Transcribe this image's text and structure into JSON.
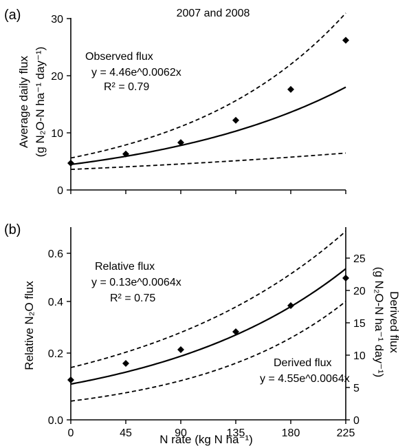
{
  "chart_data": [
    {
      "type": "scatter",
      "panel_label": "(a)",
      "title": "2007 and 2008",
      "ylabel_line1": "Average daily flux",
      "ylabel_line2": "(g N₂O-N ha⁻¹ day⁻¹)",
      "xlim": [
        0,
        225
      ],
      "ylim": [
        0,
        30
      ],
      "yticks": [
        "0",
        "10",
        "20",
        "30"
      ],
      "xticks": [
        0,
        45,
        90,
        135,
        180,
        225
      ],
      "x": [
        0,
        45,
        90,
        135,
        180,
        225
      ],
      "y": [
        4.7,
        6.3,
        8.3,
        12.2,
        17.6,
        26.2
      ],
      "fit": {
        "a": 4.46,
        "b": 0.0062
      },
      "upper_ci": {
        "a": 5.6,
        "b": 0.0076
      },
      "lower_ci": {
        "a": 3.6,
        "b": 0.0026
      },
      "annotation": {
        "name": "Observed flux",
        "equation": "y = 4.46e^0.0062x",
        "r2": "R² = 0.79"
      }
    },
    {
      "type": "scatter",
      "panel_label": "(b)",
      "ylabel": "Relative N₂O flux",
      "y2label_line1": "Derived flux",
      "y2label_line2": "(g N₂O-N ha⁻¹ day⁻¹)",
      "xlabel": "N rate (kg N ha⁻¹)",
      "xlim": [
        0,
        225
      ],
      "ylim": [
        0,
        0.7
      ],
      "yticks": [
        "0.0",
        "0.2",
        "0.4",
        "0.6"
      ],
      "y2lim": [
        0,
        25
      ],
      "y2ticks": [
        "0",
        "5",
        "10",
        "15",
        "20",
        "25"
      ],
      "xticks": [
        "0",
        "45",
        "90",
        "135",
        "180",
        "225"
      ],
      "x": [
        0,
        45,
        90,
        135,
        180,
        225
      ],
      "y": [
        0.145,
        0.205,
        0.255,
        0.32,
        0.415,
        0.515
      ],
      "fit": {
        "a": 0.13,
        "b": 0.0064
      },
      "upper_ci": {
        "a": 0.19,
        "b": 0.0057
      },
      "lower_ci": {
        "a": 0.068,
        "b": 0.0082
      },
      "annotation": {
        "name": "Relative flux",
        "equation": "y = 0.13e^0.0064x",
        "r2": "R² = 0.75",
        "derived_name": "Derived flux",
        "derived_equation": "y = 4.55e^0.0064x"
      }
    }
  ]
}
